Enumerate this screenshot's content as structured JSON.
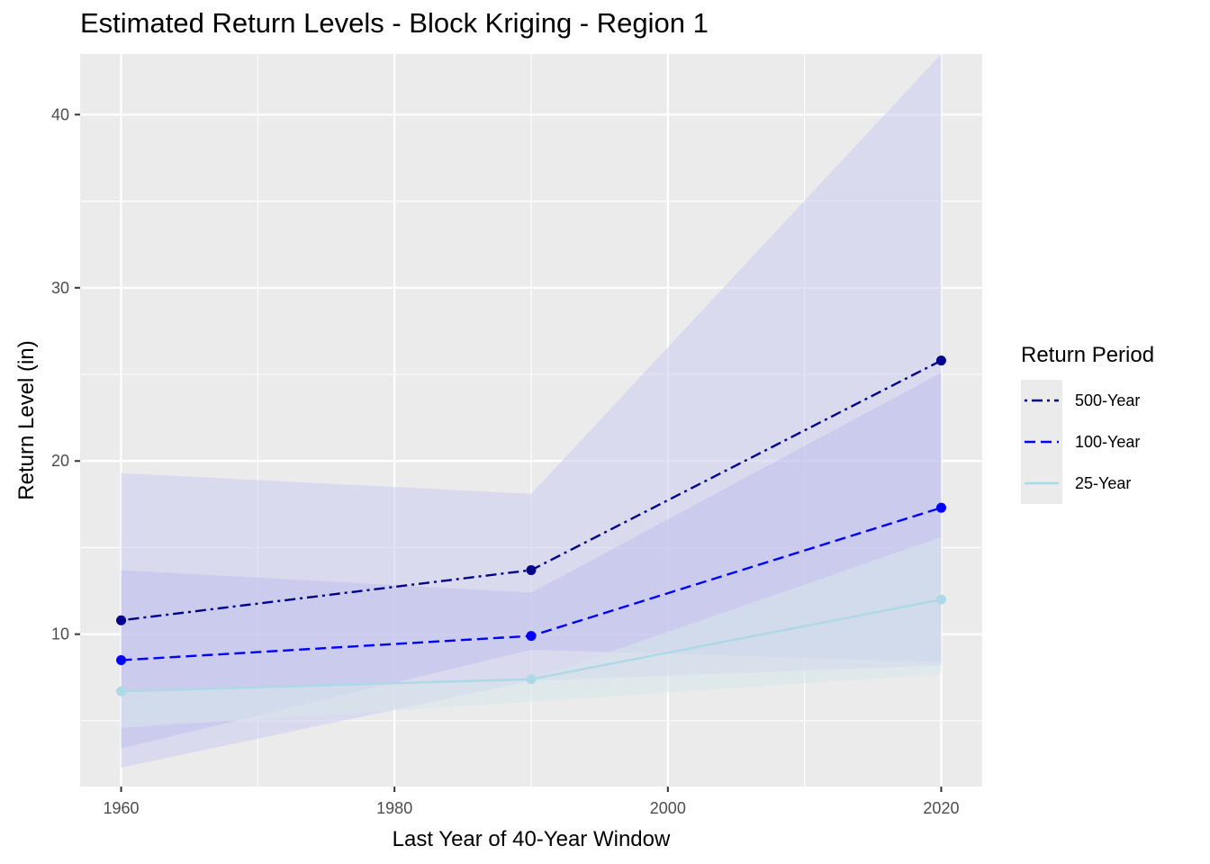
{
  "chart_data": {
    "type": "line",
    "title": "Estimated Return Levels - Block Kriging - Region 1",
    "xlabel": "Last Year of 40-Year Window",
    "ylabel": "Return Level (in)",
    "x": [
      1960,
      1990,
      2020
    ],
    "xlim": [
      1957,
      2023
    ],
    "ylim": [
      1.2,
      43.5
    ],
    "x_ticks": [
      1960,
      1980,
      2000,
      2020
    ],
    "y_ticks": [
      10,
      20,
      30,
      40
    ],
    "grid": true,
    "legend": {
      "title": "Return Period",
      "placement": "right"
    },
    "series": [
      {
        "name": "500-Year",
        "color": "#00008b",
        "line_style": "dotdash",
        "values": [
          10.8,
          13.7,
          25.8
        ],
        "ci_lower": [
          2.3,
          7.3,
          8.2
        ],
        "ci_upper": [
          19.3,
          18.1,
          43.5
        ],
        "ribbon_color": "#cfcff0"
      },
      {
        "name": "100-Year",
        "color": "#0000ff",
        "line_style": "dashed",
        "values": [
          8.5,
          9.9,
          17.3
        ],
        "ci_lower": [
          3.4,
          9.1,
          8.4
        ],
        "ci_upper": [
          13.7,
          12.4,
          25.1
        ],
        "ribbon_color": "#c2c2ee"
      },
      {
        "name": "25-Year",
        "color": "#add8e6",
        "line_style": "solid",
        "values": [
          6.7,
          7.4,
          12.0
        ],
        "ci_lower": [
          4.6,
          6.1,
          7.7
        ],
        "ci_upper": [
          6.7,
          7.4,
          15.6
        ],
        "ribbon_color": "#d7e6ea"
      }
    ]
  }
}
